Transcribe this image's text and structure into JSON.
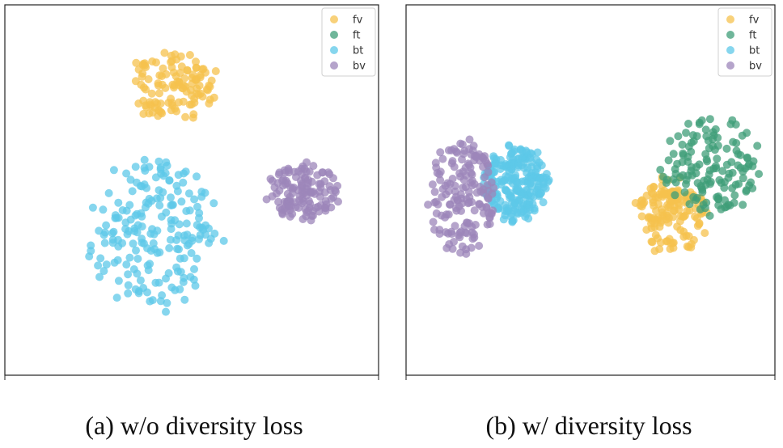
{
  "panels": [
    {
      "caption": "(a) w/o diversity loss"
    },
    {
      "caption": "(b) w/ diversity loss"
    }
  ],
  "legend": [
    {
      "label": "fv",
      "color": "#f6c14e"
    },
    {
      "label": "ft",
      "color": "#3f9e78"
    },
    {
      "label": "bt",
      "color": "#5ec8e8"
    },
    {
      "label": "bv",
      "color": "#9c86b9"
    }
  ],
  "chart_data": [
    {
      "type": "scatter",
      "title": "(a) w/o diversity loss",
      "xlabel": "",
      "ylabel": "",
      "xlim": [
        0,
        100
      ],
      "ylim": [
        0,
        100
      ],
      "grid": false,
      "legend_position": "top-right",
      "series": [
        {
          "name": "fv",
          "color": "#f6c14e",
          "cluster": {
            "cx": 45,
            "cy": 78,
            "rx": 12,
            "ry": 10,
            "n": 120
          }
        },
        {
          "name": "ft",
          "color": "#3f9e78",
          "cluster": null
        },
        {
          "name": "bt",
          "color": "#5ec8e8",
          "cluster": {
            "cx": 40,
            "cy": 38,
            "rx": 18,
            "ry": 21,
            "n": 200
          }
        },
        {
          "name": "bv",
          "color": "#9c86b9",
          "cluster": {
            "cx": 80,
            "cy": 49,
            "rx": 10,
            "ry": 9,
            "n": 130
          }
        }
      ]
    },
    {
      "type": "scatter",
      "title": "(b) w/ diversity loss",
      "xlabel": "",
      "ylabel": "",
      "xlim": [
        0,
        100
      ],
      "ylim": [
        0,
        100
      ],
      "grid": false,
      "legend_position": "top-right",
      "series": [
        {
          "name": "fv",
          "color": "#f6c14e",
          "cluster": {
            "cx": 72,
            "cy": 43,
            "rx": 10,
            "ry": 11,
            "n": 150
          }
        },
        {
          "name": "ft",
          "color": "#3f9e78",
          "cluster": {
            "cx": 82,
            "cy": 57,
            "rx": 14,
            "ry": 14,
            "n": 140
          }
        },
        {
          "name": "bt",
          "color": "#5ec8e8",
          "cluster": {
            "cx": 30,
            "cy": 52,
            "rx": 9,
            "ry": 11,
            "n": 230
          }
        },
        {
          "name": "bv",
          "color": "#9c86b9",
          "cluster": {
            "cx": 15,
            "cy": 48,
            "rx": 10,
            "ry": 16,
            "n": 160
          }
        }
      ]
    }
  ]
}
